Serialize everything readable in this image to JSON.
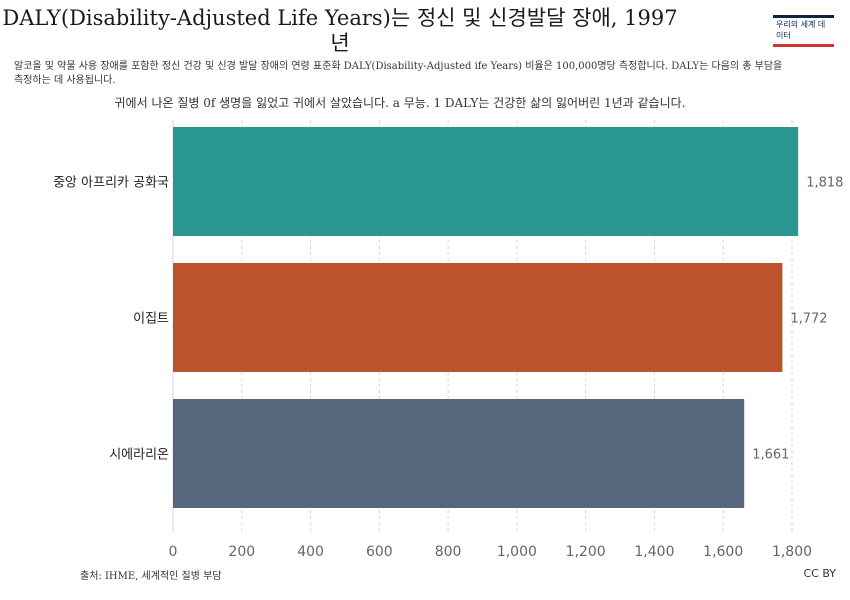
{
  "header": {
    "title": "DALY(Disability-Adjusted Life Years)는 정신 및 신경발달 장애, 1997년",
    "subtitle": "알코올 및 약물 사용 장애를 포함한 정신 건강 및 신경 발달 장애의 연령 표준화 DALY(Disability-Adjusted ife Years) 비율은 100,000명당 측정합니다. DALY는 다음의 총 부담을 측정하는 데 사용됩니다.",
    "note": "귀에서 나온 질병 0f 생명을 잃었고 귀에서 살았습니다. a 무능. 1 DALY는 건강한 삶의 잃어버린 1년과 같습니다."
  },
  "logo": {
    "text": "우리의 세계 데이터"
  },
  "footer": {
    "source": "출처: IHME, 세계적인 질병 부담",
    "license": "CC BY"
  },
  "colors": {
    "bar1": "#2a9690",
    "bar2": "#bc532c",
    "bar3": "#56667d",
    "grid": "#d6d6d6",
    "axis_text": "#666666"
  },
  "chart_data": {
    "type": "bar",
    "orientation": "horizontal",
    "categories": [
      "중앙 아프리카 공화국",
      "이집트",
      "시에라리온"
    ],
    "values": [
      1818,
      1772,
      1661
    ],
    "value_labels": [
      "1,818",
      "1,772",
      "1,661"
    ],
    "xlim": [
      0,
      1800
    ],
    "xticks": [
      0,
      200,
      400,
      600,
      800,
      1000,
      1200,
      1400,
      1600,
      1800
    ],
    "xtick_labels": [
      "0",
      "200",
      "400",
      "600",
      "800",
      "1,000",
      "1,200",
      "1,400",
      "1,600",
      "1,800"
    ],
    "grid": true
  }
}
